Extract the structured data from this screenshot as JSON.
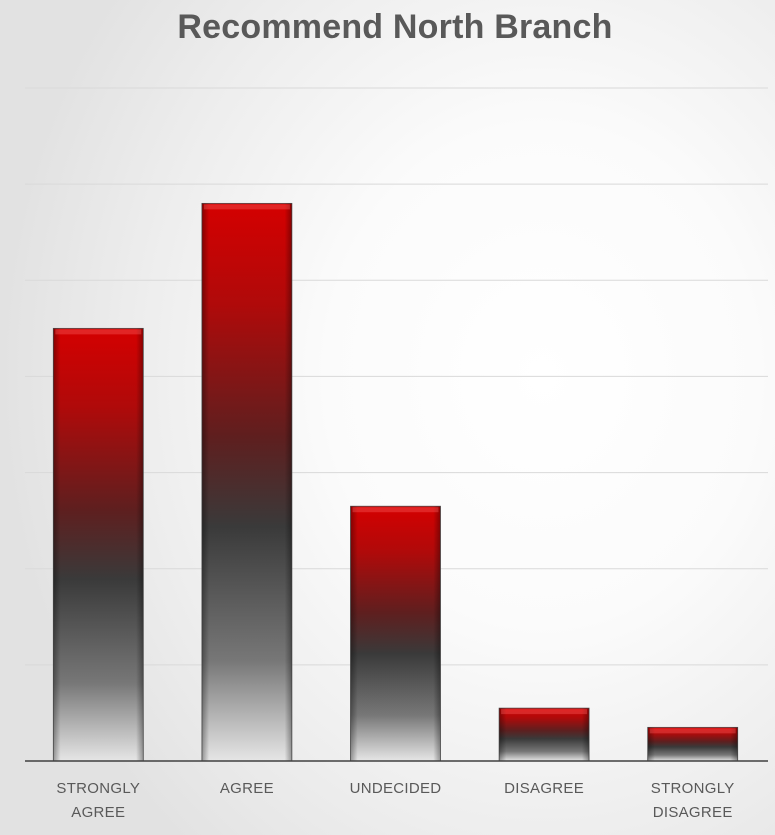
{
  "chart_data": {
    "type": "bar",
    "title": "Recommend North Branch",
    "categories": [
      "STRONGLY\nAGREE",
      "AGREE",
      "UNDECIDED",
      "DISAGREE",
      "STRONGLY\nDISAGREE"
    ],
    "values": [
      45,
      58,
      26.5,
      5.5,
      3.5
    ],
    "ylim": [
      0,
      70
    ],
    "grid": true,
    "colors": {
      "bar_top": "#c00000",
      "bar_mid": "#404040",
      "bar_bottom": "#d9d9d9",
      "grid": "#d9d9d9",
      "axis": "#404040"
    }
  }
}
